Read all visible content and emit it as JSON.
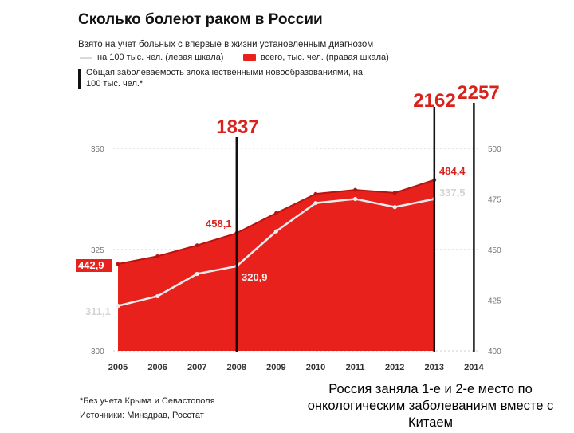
{
  "header": {
    "title": "Сколько болеют раком в России",
    "subtitle": "Взято на учет больных с впервые в жизни установленным диагнозом",
    "legend_left": "на 100 тыс. чел. (левая шкала)",
    "legend_right": "всего, тыс. чел. (правая шкала)",
    "legend_bar": "Общая заболеваемость злокачественными новообразованиями, на 100 тыс. чел.*"
  },
  "footer": {
    "footnote": "*Без учета Крыма и Севастополя",
    "source": "Источники: Минздрав, Росстат"
  },
  "caption": "Россия заняла 1-е и 2-е место по онкологическим заболеваниям вместе с Китаем",
  "colors": {
    "red_area": "#e8211c",
    "red_text": "#d9221c",
    "white_line": "#ececec",
    "bars": "#111111",
    "axis_text": "#777777"
  },
  "chart_data": {
    "type": "area",
    "x": [
      "2005",
      "2006",
      "2007",
      "2008",
      "2009",
      "2010",
      "2011",
      "2012",
      "2013",
      "2014"
    ],
    "left_axis": {
      "ticks": [
        300,
        325,
        350
      ],
      "ylim": [
        300,
        350
      ]
    },
    "right_axis": {
      "ticks": [
        400,
        425,
        450,
        475,
        500
      ],
      "ylim": [
        400,
        500
      ]
    },
    "series": [
      {
        "name": "всего, тыс. чел. (правая шкала)",
        "axis": "right",
        "x": [
          "2005",
          "2006",
          "2007",
          "2008",
          "2009",
          "2010",
          "2011",
          "2012",
          "2013"
        ],
        "values": [
          442.9,
          446.7,
          452.1,
          458.1,
          468.0,
          477.5,
          479.5,
          478.0,
          484.4
        ],
        "labels": {
          "2005": "442,9",
          "2008": "458,1",
          "2013": "484,4"
        }
      },
      {
        "name": "на 100 тыс. чел. (левая шкала)",
        "axis": "left",
        "x": [
          "2005",
          "2006",
          "2007",
          "2008",
          "2009",
          "2010",
          "2011",
          "2012",
          "2013"
        ],
        "values": [
          311.1,
          313.5,
          319.0,
          320.9,
          329.5,
          336.5,
          337.5,
          335.5,
          337.5
        ],
        "labels": {
          "2005": "311,1",
          "2008": "320,9",
          "2013": "337,5"
        }
      }
    ],
    "bars": [
      {
        "x": "2008",
        "value": 1837,
        "label": "1837"
      },
      {
        "x": "2013",
        "value": 2162,
        "label": "2162"
      },
      {
        "x": "2014",
        "value": 2257,
        "label": "2257"
      }
    ]
  }
}
